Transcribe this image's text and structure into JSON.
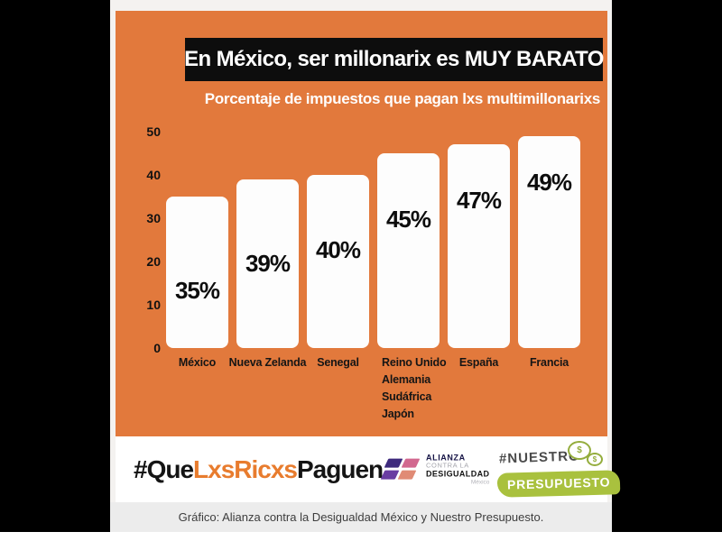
{
  "page": {
    "caption": "Gráfico: Alianza contra la Desigualdad México y Nuestro Presupuesto."
  },
  "infographic": {
    "title": "En México, ser millonarix es MUY BARATO",
    "subtitle": "Porcentaje de impuestos que pagan lxs multimillonarixs",
    "hashtag": {
      "prefix": "#Que",
      "highlight": "LxsRicxs",
      "suffix": "Paguen"
    },
    "logos": {
      "alianza": {
        "line1": "ALIANZA",
        "line2": "CONTRA LA",
        "line3": "DESIGUALDAD",
        "line4": "México"
      },
      "presupuesto": {
        "line1": "#NUESTRO",
        "line2": "PRESUPUESTO",
        "bubble_symbol": "$"
      }
    },
    "colors": {
      "background_orange": "#e2793c",
      "title_banner": "#0d0d0d",
      "bar_fill": "#ffffff",
      "hashtag_accent": "#e87c2e",
      "presupuesto_green": "#a9c13e",
      "alianza_purple_dark": "#3e2a7d",
      "alianza_pink": "#d2688f",
      "alianza_purple": "#6a3da2",
      "alianza_salmon": "#e08b75"
    }
  },
  "chart_data": {
    "type": "bar",
    "title": "En México, ser millonarix es MUY BARATO",
    "subtitle": "Porcentaje de impuestos que pagan lxs multimillonarixs",
    "categories": [
      "México",
      "Nueva Zelanda",
      "Senegal",
      "Reino Unido / Alemania / Sudáfrica / Japón",
      "España",
      "Francia"
    ],
    "category_lines": [
      [
        "México"
      ],
      [
        "Nueva Zelanda"
      ],
      [
        "Senegal"
      ],
      [
        "Reino Unido",
        "Alemania",
        "Sudáfrica",
        "Japón"
      ],
      [
        "España"
      ],
      [
        "Francia"
      ]
    ],
    "values": [
      35,
      39,
      40,
      45,
      47,
      49
    ],
    "labels": [
      "35%",
      "39%",
      "40%",
      "45%",
      "47%",
      "49%"
    ],
    "xlabel": "",
    "ylabel": "",
    "ylim": [
      0,
      50
    ],
    "yticks": [
      0,
      10,
      20,
      30,
      40,
      50
    ],
    "grid": false,
    "legend": false,
    "bar_color": "#ffffff",
    "background": "#e2793c"
  }
}
